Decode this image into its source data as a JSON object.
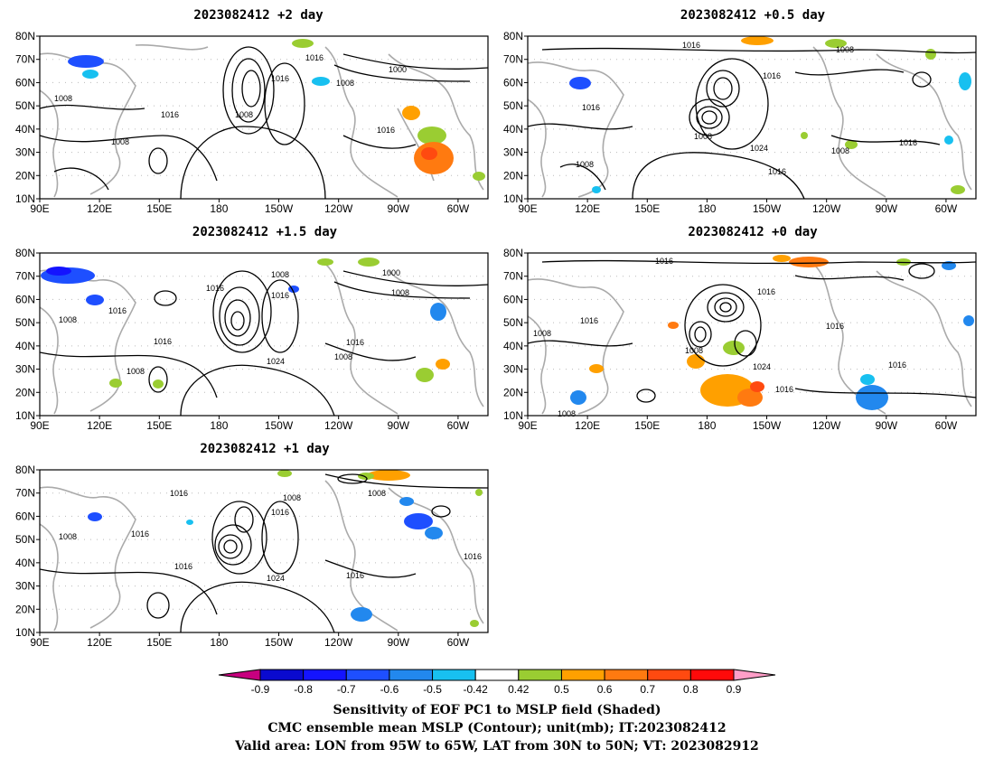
{
  "panels": [
    {
      "title": "2023082412 +2 day",
      "x_ticks": [
        "90E",
        "120E",
        "150E",
        "180",
        "150W",
        "120W",
        "90W",
        "60W"
      ],
      "y_ticks": [
        "10N",
        "20N",
        "30N",
        "40N",
        "50N",
        "60N",
        "70N",
        "80N"
      ],
      "contour_labels": [
        "1016",
        "1016",
        "1000",
        "1008",
        "1008",
        "1016",
        "1008",
        "1016",
        "1008"
      ]
    },
    {
      "title": "2023082412 +0.5 day",
      "x_ticks": [
        "90E",
        "120E",
        "150E",
        "180",
        "150W",
        "120W",
        "90W",
        "60W"
      ],
      "y_ticks": [
        "10N",
        "20N",
        "30N",
        "40N",
        "50N",
        "60N",
        "70N",
        "80N"
      ],
      "contour_labels": [
        "1016",
        "1008",
        "1016",
        "1016",
        "1008",
        "1024",
        "1016",
        "1008",
        "1016",
        "1008"
      ]
    },
    {
      "title": "2023082412 +1.5 day",
      "x_ticks": [
        "90E",
        "120E",
        "150E",
        "180",
        "150W",
        "120W",
        "90W",
        "60W"
      ],
      "y_ticks": [
        "10N",
        "20N",
        "30N",
        "40N",
        "50N",
        "60N",
        "70N",
        "80N"
      ],
      "contour_labels": [
        "1008",
        "1000",
        "1016",
        "1016",
        "1008",
        "1008",
        "1016",
        "1016",
        "1024",
        "1016",
        "1008",
        "1008"
      ]
    },
    {
      "title": "2023082412 +0 day",
      "x_ticks": [
        "90E",
        "120E",
        "150E",
        "180",
        "150W",
        "120W",
        "90W",
        "60W"
      ],
      "y_ticks": [
        "10N",
        "20N",
        "30N",
        "40N",
        "50N",
        "60N",
        "70N",
        "80N"
      ],
      "contour_labels": [
        "1016",
        "1016",
        "1016",
        "1008",
        "1016",
        "1008",
        "1024",
        "1016",
        "1016",
        "1008"
      ]
    },
    {
      "title": "2023082412 +1 day",
      "x_ticks": [
        "90E",
        "120E",
        "150E",
        "180",
        "150W",
        "120W",
        "90W",
        "60W"
      ],
      "y_ticks": [
        "10N",
        "20N",
        "30N",
        "40N",
        "50N",
        "60N",
        "70N",
        "80N"
      ],
      "contour_labels": [
        "1016",
        "1008",
        "1016",
        "1008",
        "1016",
        "1008",
        "1016",
        "1024",
        "1016",
        "1016"
      ]
    }
  ],
  "colorbar": {
    "labels": [
      "-0.9",
      "-0.8",
      "-0.7",
      "-0.6",
      "-0.5",
      "-0.42",
      "0.42",
      "0.5",
      "0.6",
      "0.7",
      "0.8",
      "0.9"
    ],
    "colors": [
      "#c8007f",
      "#0a0acf",
      "#1414ff",
      "#1e4fff",
      "#2288ee",
      "#18c0f0",
      "#ffffff",
      "#9acd32",
      "#ffa000",
      "#ff7a10",
      "#ff4a10",
      "#ff0a0a",
      "#ff9ec8"
    ]
  },
  "caption": {
    "line1": "Sensitivity of EOF PC1 to MSLP field (Shaded)",
    "line2": "CMC ensemble mean MSLP (Contour); unit(mb); IT:2023082412",
    "line3": "Valid area: LON from 95W to 65W, LAT from 30N to 50N; VT: 2023082912"
  }
}
